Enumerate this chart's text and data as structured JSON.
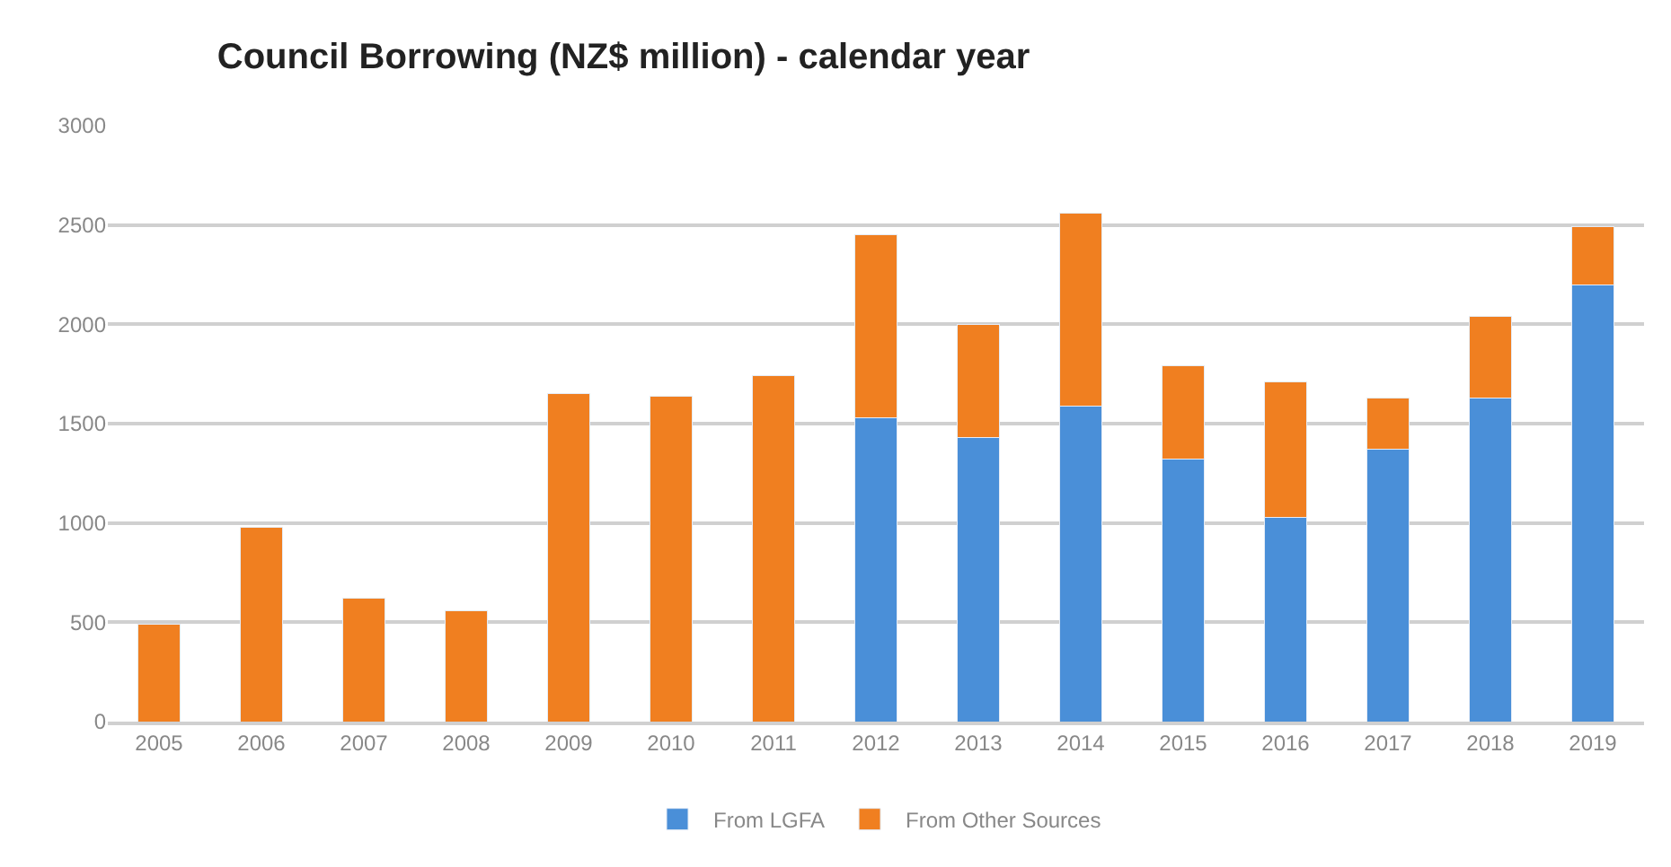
{
  "chart_data": {
    "type": "bar",
    "title": "Council Borrowing (NZ$ million) - calendar year",
    "categories": [
      "2005",
      "2006",
      "2007",
      "2008",
      "2009",
      "2010",
      "2011",
      "2012",
      "2013",
      "2014",
      "2015",
      "2016",
      "2017",
      "2018",
      "2019"
    ],
    "stacked": true,
    "series": [
      {
        "name": "From LGFA",
        "color": "#4a8fd8",
        "values": [
          null,
          null,
          null,
          null,
          null,
          null,
          null,
          1530,
          1430,
          1590,
          1320,
          1030,
          1370,
          1630,
          2200
        ]
      },
      {
        "name": "From Other Sources",
        "color": "#f07f20",
        "values": [
          490,
          980,
          620,
          560,
          1650,
          1640,
          1740,
          920,
          570,
          970,
          470,
          680,
          260,
          410,
          290
        ]
      }
    ],
    "ylim": [
      0,
      3000
    ],
    "yticks": [
      0,
      500,
      1000,
      1500,
      2000,
      2500,
      3000
    ],
    "grid": "y",
    "legend": "bottom"
  }
}
